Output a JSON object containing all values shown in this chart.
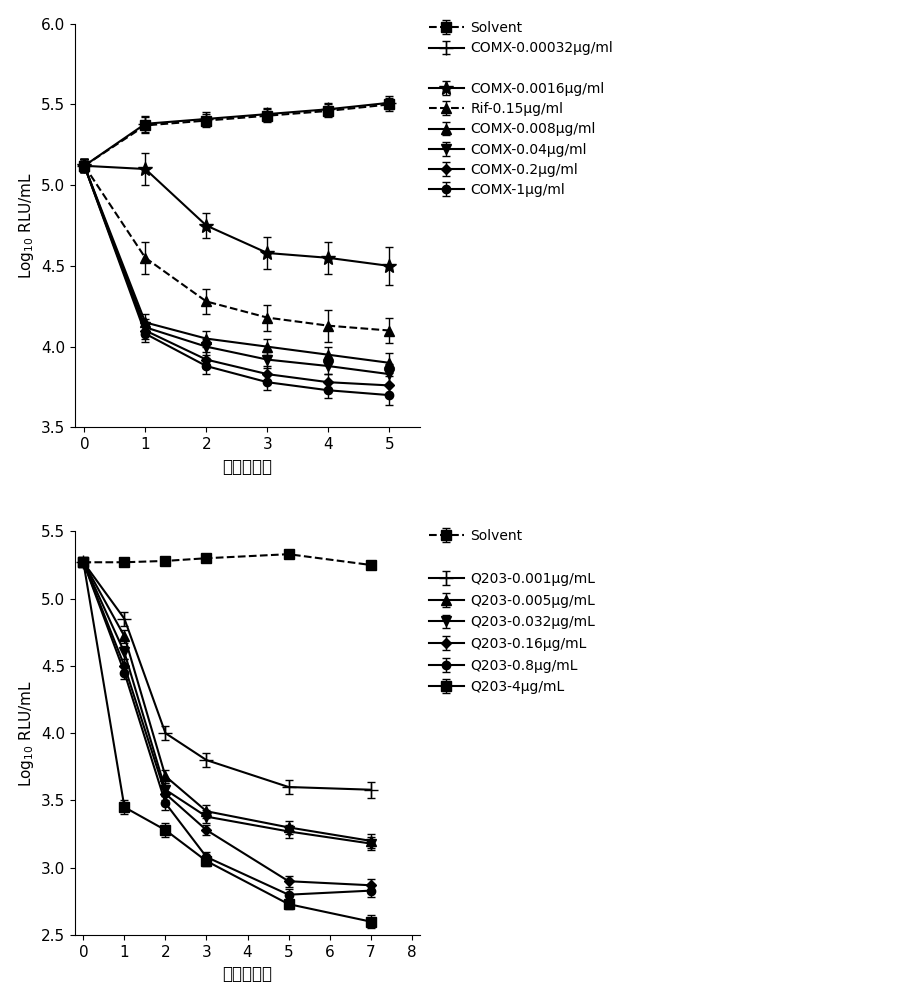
{
  "top_chart": {
    "xlabel": "时间（天）",
    "ylabel": "Log₁₀ RLU/mL",
    "xlim": [
      -0.15,
      5.5
    ],
    "ylim": [
      3.5,
      6.0
    ],
    "yticks": [
      3.5,
      4.0,
      4.5,
      5.0,
      5.5,
      6.0
    ],
    "xticks": [
      0,
      1,
      2,
      3,
      4,
      5
    ],
    "series": [
      {
        "label": "Solvent",
        "x": [
          0,
          1,
          2,
          3,
          4,
          5
        ],
        "y": [
          5.12,
          5.37,
          5.4,
          5.43,
          5.46,
          5.5
        ],
        "yerr": [
          0.04,
          0.05,
          0.04,
          0.04,
          0.04,
          0.04
        ],
        "linestyle": "dashed",
        "marker": "s",
        "markersize": 7
      },
      {
        "label": "COMX-0.00032μg/ml",
        "x": [
          0,
          1,
          2,
          3,
          4,
          5
        ],
        "y": [
          5.12,
          5.38,
          5.41,
          5.44,
          5.47,
          5.51
        ],
        "yerr": [
          0.04,
          0.05,
          0.04,
          0.04,
          0.04,
          0.04
        ],
        "linestyle": "solid",
        "marker": "+",
        "markersize": 10
      },
      {
        "label": "COMX-0.0016μg/ml",
        "x": [
          0,
          1,
          2,
          3,
          4,
          5
        ],
        "y": [
          5.12,
          5.1,
          4.75,
          4.58,
          4.55,
          4.5
        ],
        "yerr": [
          0.04,
          0.1,
          0.08,
          0.1,
          0.1,
          0.12
        ],
        "linestyle": "solid",
        "marker": "*",
        "markersize": 10
      },
      {
        "label": "Rif-0.15μg/ml",
        "x": [
          0,
          1,
          2,
          3,
          4,
          5
        ],
        "y": [
          5.12,
          4.55,
          4.28,
          4.18,
          4.13,
          4.1
        ],
        "yerr": [
          0.04,
          0.1,
          0.08,
          0.08,
          0.1,
          0.08
        ],
        "linestyle": "dashed",
        "marker": "^",
        "markersize": 7
      },
      {
        "label": "COMX-0.008μg/ml",
        "x": [
          0,
          1,
          2,
          3,
          4,
          5
        ],
        "y": [
          5.12,
          4.15,
          4.05,
          4.0,
          3.95,
          3.9
        ],
        "yerr": [
          0.04,
          0.05,
          0.05,
          0.05,
          0.05,
          0.06
        ],
        "linestyle": "solid",
        "marker": "^",
        "markersize": 7
      },
      {
        "label": "COMX-0.04μg/ml",
        "x": [
          0,
          1,
          2,
          3,
          4,
          5
        ],
        "y": [
          5.12,
          4.12,
          4.0,
          3.92,
          3.88,
          3.83
        ],
        "yerr": [
          0.04,
          0.05,
          0.05,
          0.05,
          0.05,
          0.06
        ],
        "linestyle": "solid",
        "marker": "v",
        "markersize": 7
      },
      {
        "label": "COMX-0.2μg/ml",
        "x": [
          0,
          1,
          2,
          3,
          4,
          5
        ],
        "y": [
          5.12,
          4.1,
          3.92,
          3.83,
          3.78,
          3.76
        ],
        "yerr": [
          0.04,
          0.05,
          0.05,
          0.05,
          0.05,
          0.06
        ],
        "linestyle": "solid",
        "marker": "D",
        "markersize": 5
      },
      {
        "label": "COMX-1μg/ml",
        "x": [
          0,
          1,
          2,
          3,
          4,
          5
        ],
        "y": [
          5.12,
          4.08,
          3.88,
          3.78,
          3.73,
          3.7
        ],
        "yerr": [
          0.04,
          0.05,
          0.05,
          0.05,
          0.05,
          0.06
        ],
        "linestyle": "solid",
        "marker": "o",
        "markersize": 6
      }
    ],
    "legend_groups": [
      [
        0,
        1
      ],
      [
        2,
        3,
        4,
        5,
        6,
        7
      ]
    ]
  },
  "bottom_chart": {
    "xlabel": "时间（天）",
    "ylabel": "Log₁₀ RLU/mL",
    "xlim": [
      -0.2,
      8.2
    ],
    "ylim": [
      2.5,
      5.5
    ],
    "yticks": [
      2.5,
      3.0,
      3.5,
      4.0,
      4.5,
      5.0,
      5.5
    ],
    "xticks": [
      0,
      1,
      2,
      3,
      4,
      5,
      6,
      7,
      8
    ],
    "series": [
      {
        "label": "Solvent",
        "x": [
          0,
          1,
          2,
          3,
          5,
          7
        ],
        "y": [
          5.27,
          5.27,
          5.28,
          5.3,
          5.33,
          5.25
        ],
        "yerr": [
          0.03,
          0.03,
          0.03,
          0.03,
          0.03,
          0.03
        ],
        "linestyle": "dashed",
        "marker": "s",
        "markersize": 7
      },
      {
        "label": "Q203-0.001μg/mL",
        "x": [
          0,
          1,
          2,
          3,
          5,
          7
        ],
        "y": [
          5.27,
          4.85,
          4.0,
          3.8,
          3.6,
          3.58
        ],
        "yerr": [
          0.03,
          0.05,
          0.05,
          0.05,
          0.05,
          0.06
        ],
        "linestyle": "solid",
        "marker": "+",
        "markersize": 10
      },
      {
        "label": "Q203-0.005μg/mL",
        "x": [
          0,
          1,
          2,
          3,
          5,
          7
        ],
        "y": [
          5.27,
          4.72,
          3.68,
          3.42,
          3.3,
          3.2
        ],
        "yerr": [
          0.03,
          0.05,
          0.05,
          0.05,
          0.05,
          0.05
        ],
        "linestyle": "solid",
        "marker": "^",
        "markersize": 7
      },
      {
        "label": "Q203-0.032μg/mL",
        "x": [
          0,
          1,
          2,
          3,
          5,
          7
        ],
        "y": [
          5.27,
          4.6,
          3.58,
          3.38,
          3.27,
          3.18
        ],
        "yerr": [
          0.03,
          0.05,
          0.05,
          0.05,
          0.05,
          0.05
        ],
        "linestyle": "solid",
        "marker": "v",
        "markersize": 7
      },
      {
        "label": "Q203-0.16μg/mL",
        "x": [
          0,
          1,
          2,
          3,
          5,
          7
        ],
        "y": [
          5.27,
          4.5,
          3.55,
          3.28,
          2.9,
          2.87
        ],
        "yerr": [
          0.03,
          0.05,
          0.05,
          0.04,
          0.04,
          0.05
        ],
        "linestyle": "solid",
        "marker": "D",
        "markersize": 5
      },
      {
        "label": "Q203-0.8μg/mL",
        "x": [
          0,
          1,
          2,
          3,
          5,
          7
        ],
        "y": [
          5.27,
          4.45,
          3.48,
          3.08,
          2.8,
          2.83
        ],
        "yerr": [
          0.03,
          0.05,
          0.05,
          0.04,
          0.04,
          0.05
        ],
        "linestyle": "solid",
        "marker": "o",
        "markersize": 6
      },
      {
        "label": "Q203-4μg/mL",
        "x": [
          0,
          1,
          2,
          3,
          5,
          7
        ],
        "y": [
          5.27,
          3.45,
          3.28,
          3.05,
          2.73,
          2.6
        ],
        "yerr": [
          0.03,
          0.05,
          0.05,
          0.04,
          0.04,
          0.05
        ],
        "linestyle": "solid",
        "marker": "s",
        "markersize": 7
      }
    ],
    "legend_groups": [
      [
        0
      ],
      [
        1,
        2,
        3,
        4,
        5,
        6
      ]
    ]
  }
}
